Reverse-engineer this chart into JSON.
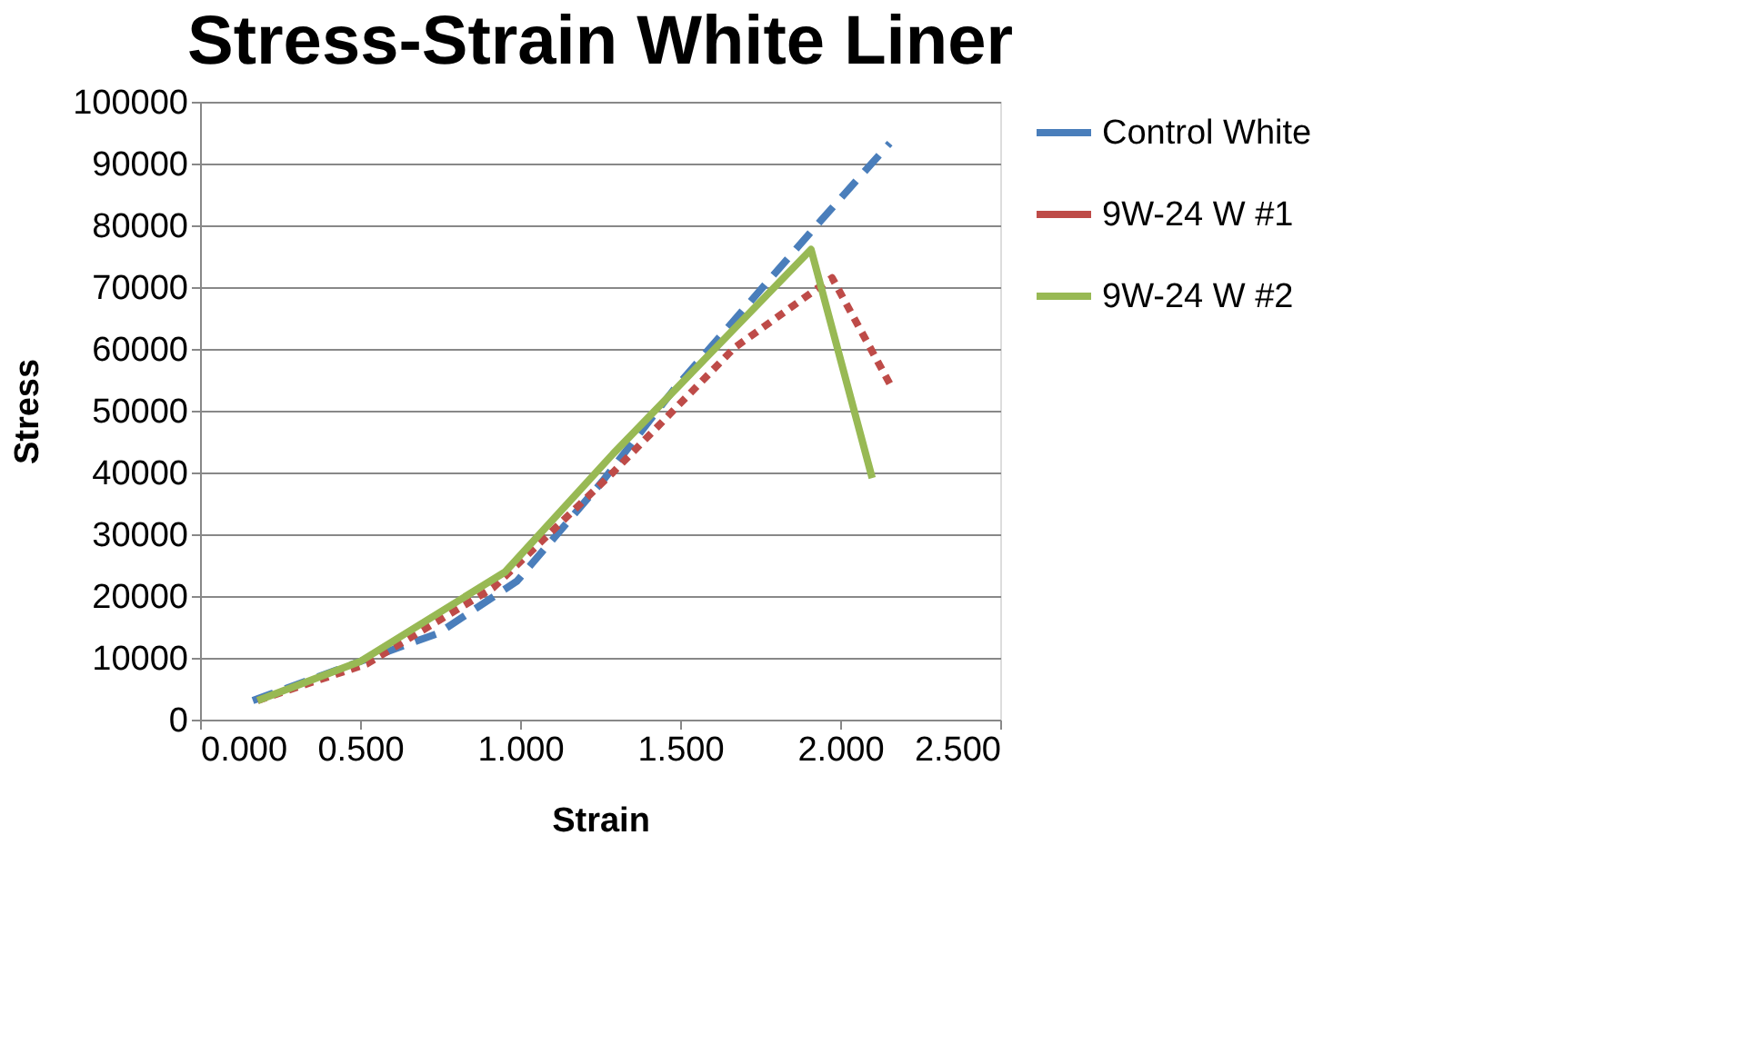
{
  "chart_data": {
    "type": "line",
    "title": "Stress-Strain White Liner",
    "xlabel": "Strain",
    "ylabel": "Stress",
    "xlim": [
      0,
      2.5
    ],
    "xticks": [
      {
        "value": 0,
        "label": "0.000"
      },
      {
        "value": 0.5,
        "label": "0.500"
      },
      {
        "value": 1,
        "label": "1.000"
      },
      {
        "value": 1.5,
        "label": "1.500"
      },
      {
        "value": 2,
        "label": "2.000"
      },
      {
        "value": 2.5,
        "label": "2.500"
      }
    ],
    "ylim": [
      0,
      100000
    ],
    "yticks": [
      0,
      10000,
      20000,
      30000,
      40000,
      50000,
      60000,
      70000,
      80000,
      90000,
      100000
    ],
    "grid": "y",
    "legend": "right",
    "series": [
      {
        "name": "Control White",
        "color": "#4a7ebb",
        "line_style": "dashed",
        "x": [
          0.165,
          0.5,
          0.745,
          0.99,
          1.256,
          1.48,
          1.94,
          2.155
        ],
        "values": [
          3100,
          9400,
          14000,
          22400,
          38500,
          53400,
          80800,
          93300
        ]
      },
      {
        "name": "9W-24 W #1",
        "color": "#be4b48",
        "line_style": "dotted",
        "x": [
          0.18,
          0.52,
          0.915,
          1.29,
          1.67,
          1.975,
          2.165
        ],
        "values": [
          3100,
          9000,
          21300,
          40000,
          60200,
          71500,
          53400
        ]
      },
      {
        "name": "9W-24 W #2",
        "color": "#98b954",
        "line_style": "solid",
        "x": [
          0.18,
          0.5,
          0.953,
          1.29,
          1.909,
          2.1
        ],
        "values": [
          3100,
          9400,
          23900,
          43000,
          76100,
          39100
        ]
      }
    ]
  }
}
